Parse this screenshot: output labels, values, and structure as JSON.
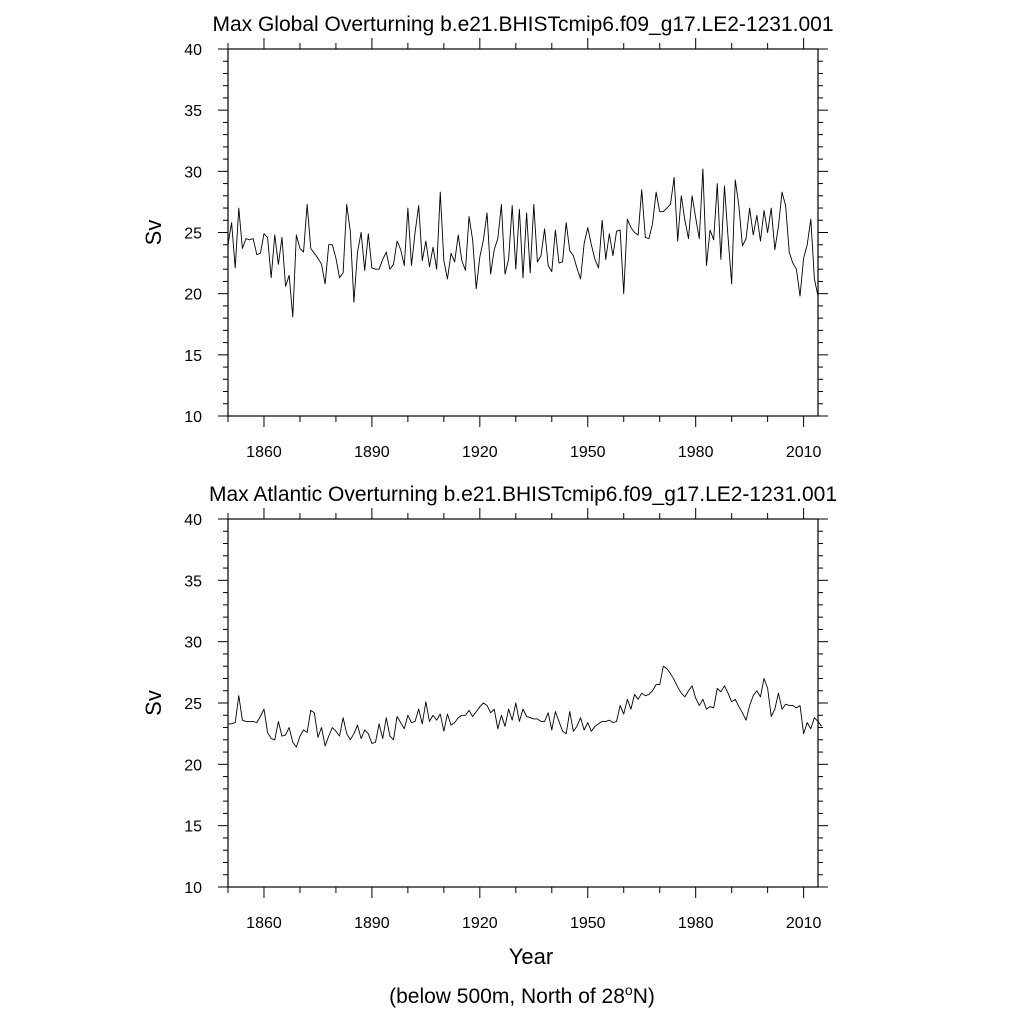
{
  "footnote": {
    "text_before": "(below 500m, North of 28",
    "superscript": "o",
    "text_after": "N)"
  },
  "chart_data": [
    {
      "type": "line",
      "title": "Max Global Overturning b.e21.BHISTcmip6.f09_g17.LE2-1231.001",
      "xlabel": "",
      "ylabel": "Sv",
      "xlim": [
        1850,
        2014
      ],
      "ylim": [
        10,
        40
      ],
      "xticks": [
        1860,
        1890,
        1920,
        1950,
        1980,
        2010
      ],
      "yticks": [
        10,
        15,
        20,
        25,
        30,
        35,
        40
      ],
      "grid": false,
      "line_color": "#000000",
      "series": [
        {
          "x_start": 1850,
          "x_step": 1,
          "values": [
            24.0,
            25.8,
            22.1,
            27.0,
            23.7,
            24.5,
            24.4,
            24.5,
            23.2,
            23.3,
            24.9,
            24.6,
            21.3,
            24.8,
            22.4,
            24.6,
            20.6,
            21.5,
            18.1,
            24.8,
            23.7,
            23.4,
            27.3,
            23.7,
            23.3,
            22.9,
            22.4,
            20.8,
            24.0,
            24.0,
            22.9,
            21.3,
            21.7,
            27.3,
            25.1,
            19.3,
            23.4,
            25.0,
            21.9,
            24.9,
            22.1,
            22.0,
            22.0,
            22.8,
            23.4,
            22.0,
            22.4,
            24.3,
            23.6,
            22.3,
            27.0,
            22.3,
            25.0,
            27.2,
            22.7,
            24.3,
            22.2,
            23.8,
            22.0,
            28.3,
            22.7,
            21.2,
            23.3,
            22.6,
            24.8,
            22.7,
            21.9,
            26.3,
            24.4,
            20.4,
            23.0,
            24.4,
            26.6,
            21.6,
            23.6,
            24.5,
            27.3,
            21.6,
            22.8,
            27.2,
            22.0,
            26.9,
            21.3,
            26.6,
            21.7,
            27.3,
            22.6,
            23.1,
            25.3,
            22.3,
            21.8,
            25.2,
            22.5,
            22.6,
            25.8,
            23.5,
            23.1,
            22.1,
            21.2,
            24.1,
            25.4,
            24.0,
            22.8,
            22.1,
            26.0,
            22.8,
            24.9,
            23.1,
            25.1,
            25.2,
            20.0,
            26.1,
            25.4,
            25.0,
            24.8,
            28.5,
            24.6,
            24.5,
            25.7,
            28.3,
            26.7,
            26.7,
            27.0,
            27.3,
            29.5,
            24.3,
            28.0,
            26.0,
            24.5,
            28.0,
            26.2,
            24.5,
            30.2,
            22.3,
            25.2,
            24.4,
            29.0,
            22.8,
            28.8,
            24.6,
            20.8,
            29.3,
            27.2,
            23.9,
            24.5,
            27.0,
            24.8,
            26.4,
            24.3,
            26.8,
            25.0,
            27.0,
            23.6,
            25.5,
            28.3,
            27.2,
            23.4,
            22.5,
            22.0,
            19.8,
            22.9,
            24.0,
            26.1,
            21.2,
            19.8
          ]
        }
      ]
    },
    {
      "type": "line",
      "title": "Max Atlantic Overturning b.e21.BHISTcmip6.f09_g17.LE2-1231.001",
      "xlabel": "Year",
      "ylabel": "Sv",
      "xlim": [
        1850,
        2014
      ],
      "ylim": [
        10,
        40
      ],
      "xticks": [
        1860,
        1890,
        1920,
        1950,
        1980,
        2010
      ],
      "yticks": [
        10,
        15,
        20,
        25,
        30,
        35,
        40
      ],
      "grid": false,
      "line_color": "#000000",
      "series": [
        {
          "x_start": 1850,
          "x_step": 1,
          "values": [
            23.3,
            23.3,
            23.4,
            25.6,
            23.6,
            23.5,
            23.5,
            23.5,
            23.4,
            23.9,
            24.5,
            22.6,
            22.1,
            22.0,
            23.5,
            22.3,
            22.4,
            23.0,
            21.8,
            21.4,
            22.3,
            22.8,
            22.6,
            24.4,
            24.2,
            22.2,
            23.0,
            21.5,
            22.3,
            23.0,
            22.7,
            22.3,
            23.8,
            22.5,
            22.0,
            22.5,
            23.2,
            22.1,
            22.8,
            22.5,
            21.7,
            21.8,
            23.3,
            22.1,
            23.8,
            22.3,
            22.0,
            23.9,
            23.4,
            22.9,
            24.0,
            23.4,
            23.5,
            24.5,
            23.3,
            25.1,
            23.5,
            24.0,
            23.6,
            24.1,
            22.7,
            24.1,
            23.2,
            23.4,
            23.8,
            24.0,
            24.0,
            24.4,
            23.9,
            24.3,
            24.7,
            25.0,
            24.8,
            24.2,
            24.5,
            22.9,
            24.0,
            23.1,
            24.5,
            23.6,
            25.0,
            23.5,
            24.5,
            23.9,
            23.8,
            23.7,
            23.7,
            23.5,
            23.5,
            24.2,
            22.8,
            24.3,
            23.5,
            22.7,
            22.5,
            24.3,
            22.7,
            23.1,
            23.8,
            22.8,
            23.4,
            22.7,
            23.1,
            23.3,
            23.5,
            23.5,
            23.6,
            23.4,
            23.5,
            24.8,
            24.1,
            25.3,
            24.5,
            25.7,
            25.3,
            25.8,
            25.6,
            25.7,
            26.0,
            26.5,
            26.5,
            28.0,
            27.8,
            27.4,
            26.9,
            26.3,
            25.8,
            25.5,
            26.0,
            26.4,
            25.4,
            24.8,
            25.3,
            24.5,
            24.7,
            24.6,
            26.2,
            25.9,
            26.4,
            25.8,
            25.1,
            25.3,
            24.7,
            24.2,
            23.6,
            24.8,
            25.6,
            26.0,
            25.5,
            27.0,
            26.2,
            23.9,
            24.5,
            25.8,
            24.5,
            24.9,
            24.8,
            24.8,
            24.6,
            24.8,
            22.5,
            23.4,
            22.9,
            23.8,
            23.5,
            23.1
          ]
        }
      ]
    }
  ]
}
